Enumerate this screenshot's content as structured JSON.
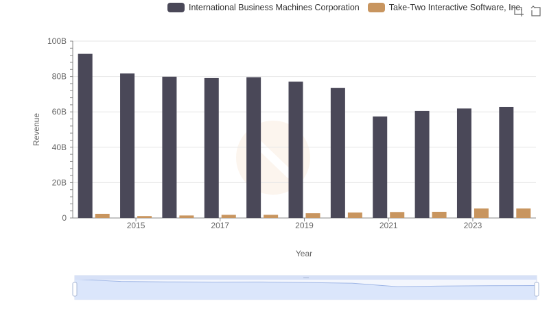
{
  "legend": {
    "ibm": "International Business Machines Corporation",
    "ttwo": "Take-Two Interactive Software, Inc."
  },
  "toolbox": {
    "icons": [
      "zoom-icon",
      "restore-icon"
    ]
  },
  "colors": {
    "ibm": "#4a4858",
    "ttwo": "#c8955f",
    "grid": "#e6e6e6",
    "zoom_fill": "#dbe6fb"
  },
  "chart_data": {
    "type": "bar",
    "xlabel": "Year",
    "ylabel": "Revenue",
    "ylim": [
      0,
      100
    ],
    "y_unit_suffix": "B",
    "yticks": [
      0,
      20,
      40,
      60,
      80,
      100
    ],
    "ytick_labels": [
      "0",
      "20B",
      "40B",
      "60B",
      "80B",
      "100B"
    ],
    "categories": [
      "2014",
      "2015",
      "2016",
      "2017",
      "2018",
      "2019",
      "2020",
      "2021",
      "2022",
      "2023",
      "2024"
    ],
    "xtick_labels": [
      "2015",
      "2017",
      "2019",
      "2021",
      "2023"
    ],
    "series": [
      {
        "name": "International Business Machines Corporation",
        "values": [
          92.8,
          81.7,
          79.9,
          79.1,
          79.6,
          77.1,
          73.6,
          57.4,
          60.5,
          61.9,
          62.8
        ]
      },
      {
        "name": "Take-Two Interactive Software, Inc.",
        "values": [
          2.35,
          1.08,
          1.41,
          1.78,
          1.79,
          2.67,
          3.09,
          3.37,
          3.5,
          5.35,
          5.35
        ]
      }
    ],
    "legend_position": "top-right",
    "grid": true
  }
}
